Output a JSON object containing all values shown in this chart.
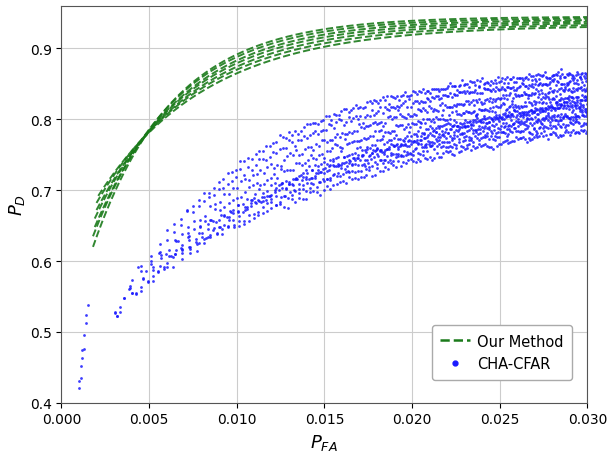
{
  "title": "",
  "xlabel": "$P_{FA}$",
  "ylabel": "$P_D$",
  "xlim": [
    0.0,
    0.03
  ],
  "ylim": [
    0.4,
    0.96
  ],
  "xticks": [
    0.0,
    0.005,
    0.01,
    0.015,
    0.02,
    0.025,
    0.03
  ],
  "yticks": [
    0.4,
    0.5,
    0.6,
    0.7,
    0.8,
    0.9
  ],
  "green_color": "#1a7a1a",
  "blue_color": "#1a1aff",
  "background_color": "#ffffff",
  "grid_color": "#cccccc",
  "legend_labels": [
    "Our Method",
    "CHA-CFAR"
  ],
  "green_curves": [
    {
      "y0": 0.62,
      "sat": 0.945,
      "k": 220,
      "x0": 0.0018
    },
    {
      "y0": 0.635,
      "sat": 0.943,
      "k": 210,
      "x0": 0.0018
    },
    {
      "y0": 0.648,
      "sat": 0.941,
      "k": 200,
      "x0": 0.0019
    },
    {
      "y0": 0.66,
      "sat": 0.939,
      "k": 190,
      "x0": 0.0019
    },
    {
      "y0": 0.672,
      "sat": 0.937,
      "k": 180,
      "x0": 0.002
    },
    {
      "y0": 0.682,
      "sat": 0.935,
      "k": 170,
      "x0": 0.002
    },
    {
      "y0": 0.692,
      "sat": 0.933,
      "k": 160,
      "x0": 0.0021
    }
  ],
  "blue_curves": [
    {
      "y0": 0.42,
      "sat": 0.875,
      "k": 130,
      "x0": 0.001,
      "n_pts": 200
    },
    {
      "y0": 0.43,
      "sat": 0.868,
      "k": 120,
      "x0": 0.001,
      "n_pts": 200
    },
    {
      "y0": 0.44,
      "sat": 0.861,
      "k": 110,
      "x0": 0.0011,
      "n_pts": 200
    },
    {
      "y0": 0.45,
      "sat": 0.854,
      "k": 100,
      "x0": 0.0011,
      "n_pts": 200
    },
    {
      "y0": 0.46,
      "sat": 0.847,
      "k": 92,
      "x0": 0.0012,
      "n_pts": 180
    },
    {
      "y0": 0.472,
      "sat": 0.84,
      "k": 85,
      "x0": 0.0012,
      "n_pts": 180
    },
    {
      "y0": 0.484,
      "sat": 0.833,
      "k": 78,
      "x0": 0.0013,
      "n_pts": 160
    },
    {
      "y0": 0.496,
      "sat": 0.826,
      "k": 72,
      "x0": 0.0013,
      "n_pts": 160
    },
    {
      "y0": 0.51,
      "sat": 0.86,
      "k": 66,
      "x0": 0.0014,
      "n_pts": 140
    },
    {
      "y0": 0.524,
      "sat": 0.89,
      "k": 60,
      "x0": 0.0014,
      "n_pts": 120
    },
    {
      "y0": 0.538,
      "sat": 0.905,
      "k": 55,
      "x0": 0.0015,
      "n_pts": 100
    }
  ]
}
